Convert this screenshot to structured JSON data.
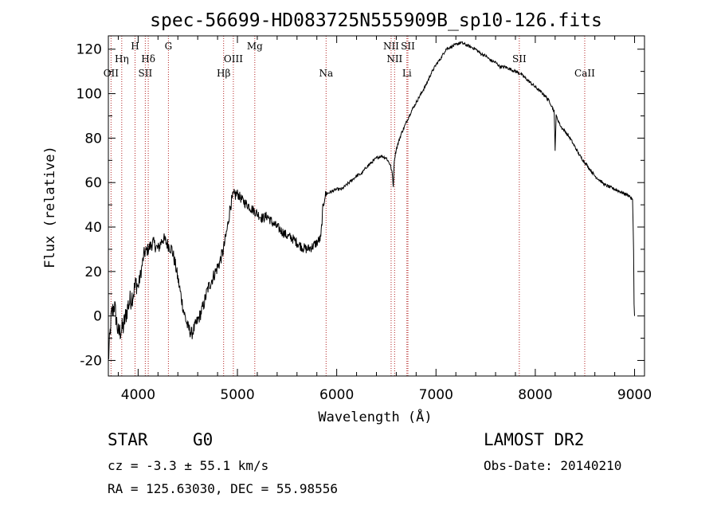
{
  "chart_data": {
    "type": "line",
    "title": "spec-56699-HD083725N555909B_sp10-126.fits",
    "xlabel": "Wavelength (Å)",
    "ylabel": "Flux (relative)",
    "xlim": [
      3700,
      9100
    ],
    "ylim": [
      -27,
      126
    ],
    "xticks": [
      "4000",
      "5000",
      "6000",
      "7000",
      "8000",
      "9000"
    ],
    "yticks": [
      "-20",
      "0",
      "20",
      "40",
      "60",
      "80",
      "100",
      "120"
    ],
    "series": [
      {
        "name": "flux",
        "x": [
          3700,
          3730,
          3760,
          3800,
          3850,
          3900,
          3950,
          3980,
          4000,
          4030,
          4060,
          4100,
          4150,
          4200,
          4250,
          4300,
          4340,
          4380,
          4420,
          4460,
          4500,
          4540,
          4580,
          4620,
          4660,
          4700,
          4740,
          4780,
          4820,
          4860,
          4900,
          4930,
          4960,
          5000,
          5050,
          5100,
          5150,
          5200,
          5250,
          5300,
          5350,
          5400,
          5450,
          5500,
          5550,
          5600,
          5650,
          5700,
          5750,
          5800,
          5840,
          5860,
          5880,
          5900,
          5950,
          6000,
          6050,
          6100,
          6150,
          6200,
          6250,
          6300,
          6350,
          6400,
          6450,
          6500,
          6540,
          6560,
          6570,
          6580,
          6600,
          6650,
          6700,
          6750,
          6800,
          6850,
          6900,
          6950,
          7000,
          7050,
          7100,
          7150,
          7200,
          7250,
          7300,
          7350,
          7400,
          7450,
          7500,
          7550,
          7600,
          7650,
          7700,
          7750,
          7800,
          7850,
          7900,
          7950,
          8000,
          8050,
          8100,
          8150,
          8190,
          8200,
          8210,
          8230,
          8260,
          8300,
          8350,
          8400,
          8450,
          8500,
          8550,
          8600,
          8650,
          8700,
          8750,
          8800,
          8850,
          8900,
          8950,
          8980,
          8990,
          8995,
          9000
        ],
        "y": [
          -20,
          0,
          5,
          -8,
          -5,
          5,
          10,
          15,
          13,
          20,
          28,
          30,
          33,
          30,
          35,
          32,
          30,
          22,
          12,
          2,
          -5,
          -8,
          -4,
          0,
          5,
          12,
          16,
          20,
          24,
          30,
          40,
          50,
          54,
          55,
          52,
          50,
          48,
          46,
          44,
          45,
          42,
          40,
          38,
          36,
          35,
          33,
          31,
          30,
          31,
          33,
          35,
          48,
          54,
          55,
          56,
          57,
          57,
          59,
          61,
          63,
          64,
          67,
          69,
          71,
          72,
          71,
          68,
          64,
          58,
          70,
          75,
          82,
          87,
          92,
          96,
          100,
          104,
          109,
          113,
          116,
          120,
          121,
          122,
          123,
          122,
          121,
          120,
          118,
          117,
          115,
          114,
          112,
          112,
          111,
          110,
          109,
          107,
          105,
          103,
          101,
          99,
          96,
          92,
          75,
          90,
          88,
          85,
          83,
          80,
          76,
          72,
          69,
          66,
          63,
          61,
          59,
          58,
          57,
          56,
          55,
          54,
          52,
          30,
          5,
          0
        ]
      }
    ],
    "lines": [
      {
        "name": "OII",
        "wl": 3727,
        "row": 3
      },
      {
        "name": "Hη",
        "wl": 3835,
        "row": 2
      },
      {
        "name": "H",
        "wl": 3969,
        "row": 1
      },
      {
        "name": "SII",
        "wl": 4072,
        "row": 3
      },
      {
        "name": "Hδ",
        "wl": 4102,
        "row": 2
      },
      {
        "name": "G",
        "wl": 4305,
        "row": 1
      },
      {
        "name": "Hβ",
        "wl": 4861,
        "row": 3
      },
      {
        "name": "OIII",
        "wl": 4959,
        "row": 2
      },
      {
        "name": "Mg",
        "wl": 5175,
        "row": 1
      },
      {
        "name": "Na",
        "wl": 5893,
        "row": 3
      },
      {
        "name": "NII",
        "wl": 6548,
        "row": 1
      },
      {
        "name": "NII",
        "wl": 6583,
        "row": 2
      },
      {
        "name": "SII",
        "wl": 6717,
        "row": 1
      },
      {
        "name": "Li",
        "wl": 6707,
        "row": 3
      },
      {
        "name": "SII",
        "wl": 7839,
        "row": 2
      },
      {
        "name": "CaII",
        "wl": 8498,
        "row": 3
      }
    ]
  },
  "footer": {
    "class_label": "STAR",
    "subclass": "G0",
    "survey": "LAMOST DR2",
    "cz": "cz = -3.3 ± 55.1 km/s",
    "obs_date": "Obs-Date: 20140210",
    "coords": "RA = 125.63030, DEC =  55.98556"
  }
}
